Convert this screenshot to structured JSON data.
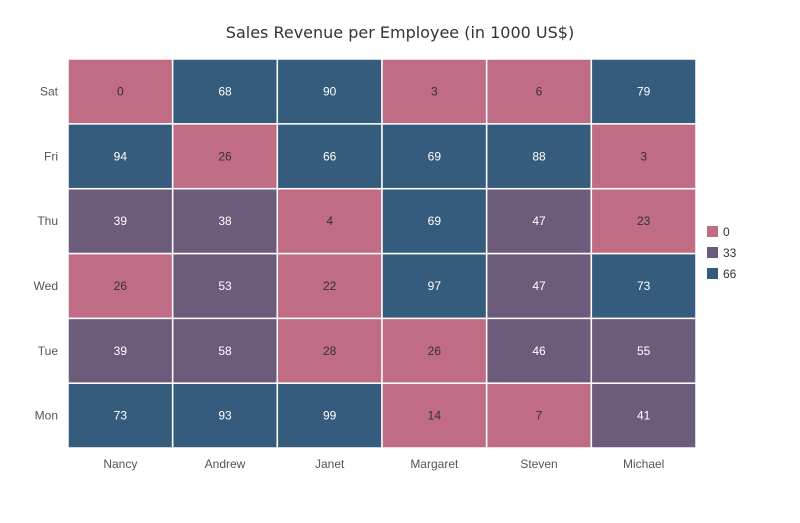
{
  "chart_data": {
    "type": "heatmap",
    "title": "Sales Revenue per Employee (in 1000 US$)",
    "x_categories": [
      "Nancy",
      "Andrew",
      "Janet",
      "Margaret",
      "Steven",
      "Michael"
    ],
    "y_categories": [
      "Mon",
      "Tue",
      "Wed",
      "Thu",
      "Fri",
      "Sat"
    ],
    "values": [
      [
        73,
        93,
        99,
        14,
        7,
        41
      ],
      [
        39,
        58,
        28,
        26,
        46,
        55
      ],
      [
        26,
        53,
        22,
        97,
        47,
        73
      ],
      [
        39,
        38,
        4,
        69,
        47,
        23
      ],
      [
        94,
        26,
        66,
        69,
        88,
        3
      ],
      [
        0,
        68,
        90,
        3,
        6,
        79
      ]
    ],
    "color_ranges": [
      {
        "label": "0",
        "min": 0,
        "max": 33,
        "color": "#c06c84"
      },
      {
        "label": "33",
        "min": 33,
        "max": 66,
        "color": "#6c5b7b"
      },
      {
        "label": "66",
        "min": 66,
        "max": 100,
        "color": "#355c7d"
      }
    ],
    "legend_position": "right",
    "cell_text_colors": {
      "light": "#ffffff",
      "dark": "#333333"
    }
  }
}
